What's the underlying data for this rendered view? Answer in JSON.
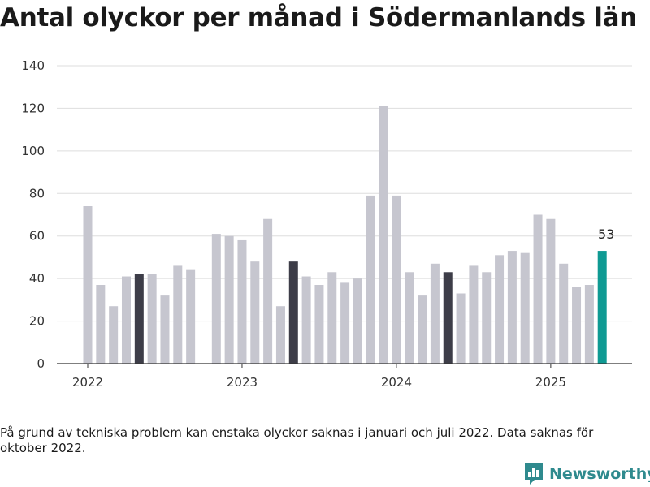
{
  "page": {
    "title": "Antal olyckor per månad i Södermanlands län",
    "note": "På grund av tekniska problem kan enstaka olyckor saknas i januari och juli 2022. Data saknas för oktober 2022.",
    "brand": "Newsworthy",
    "brand_icon": "bar-chart-logo-icon"
  },
  "colors": {
    "bar_default": "#c6c6cf",
    "bar_same_month": "#3d3d48",
    "bar_latest": "#0f9a93",
    "grid": "#dedede",
    "axis": "#333333",
    "brand": "#2f8a8e"
  },
  "chart_data": {
    "type": "bar",
    "title": "Antal olyckor per månad i Södermanlands län",
    "ylim": [
      0,
      140
    ],
    "yticks": [
      0,
      20,
      40,
      60,
      80,
      100,
      120,
      140
    ],
    "xtick_labels": [
      "2022",
      "2023",
      "2024",
      "2025"
    ],
    "grid": true,
    "legend": "none",
    "series": [
      {
        "values": [
          {
            "x": "2022-01",
            "y": 74
          },
          {
            "x": "2022-02",
            "y": 37
          },
          {
            "x": "2022-03",
            "y": 27
          },
          {
            "x": "2022-04",
            "y": 41
          },
          {
            "x": "2022-05",
            "y": 42,
            "highlight": "dark"
          },
          {
            "x": "2022-06",
            "y": 42
          },
          {
            "x": "2022-07",
            "y": 32
          },
          {
            "x": "2022-08",
            "y": 46
          },
          {
            "x": "2022-09",
            "y": 44
          },
          {
            "x": "2022-10",
            "y": null
          },
          {
            "x": "2022-11",
            "y": 61
          },
          {
            "x": "2022-12",
            "y": 60
          },
          {
            "x": "2023-01",
            "y": 58
          },
          {
            "x": "2023-02",
            "y": 48
          },
          {
            "x": "2023-03",
            "y": 68
          },
          {
            "x": "2023-04",
            "y": 27
          },
          {
            "x": "2023-05",
            "y": 48,
            "highlight": "dark"
          },
          {
            "x": "2023-06",
            "y": 41
          },
          {
            "x": "2023-07",
            "y": 37
          },
          {
            "x": "2023-08",
            "y": 43
          },
          {
            "x": "2023-09",
            "y": 38
          },
          {
            "x": "2023-10",
            "y": 40
          },
          {
            "x": "2023-11",
            "y": 79
          },
          {
            "x": "2023-12",
            "y": 121
          },
          {
            "x": "2024-01",
            "y": 79
          },
          {
            "x": "2024-02",
            "y": 43
          },
          {
            "x": "2024-03",
            "y": 32
          },
          {
            "x": "2024-04",
            "y": 47
          },
          {
            "x": "2024-05",
            "y": 43,
            "highlight": "dark"
          },
          {
            "x": "2024-06",
            "y": 33
          },
          {
            "x": "2024-07",
            "y": 46
          },
          {
            "x": "2024-08",
            "y": 43
          },
          {
            "x": "2024-09",
            "y": 51
          },
          {
            "x": "2024-10",
            "y": 53
          },
          {
            "x": "2024-11",
            "y": 52
          },
          {
            "x": "2024-12",
            "y": 70
          },
          {
            "x": "2025-01",
            "y": 68
          },
          {
            "x": "2025-02",
            "y": 47
          },
          {
            "x": "2025-03",
            "y": 36
          },
          {
            "x": "2025-04",
            "y": 37
          },
          {
            "x": "2025-05",
            "y": 53,
            "highlight": "latest",
            "label": "53"
          }
        ]
      }
    ]
  }
}
